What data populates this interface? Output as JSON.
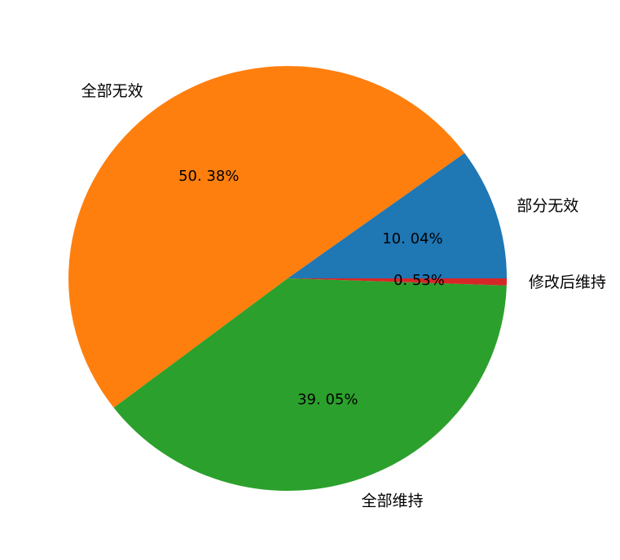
{
  "page": {
    "background_color": "#ffffff"
  },
  "chart_data": {
    "type": "pie",
    "start_angle_deg": 0,
    "direction": "counterclockwise",
    "legend_position": "none",
    "text_color": "#000000",
    "slices": [
      {
        "label": "部分无效",
        "value": 10.04,
        "pct_label": "10. 04%",
        "color": "#1f77b4"
      },
      {
        "label": "全部无效",
        "value": 50.38,
        "pct_label": "50. 38%",
        "color": "#ff7f0e"
      },
      {
        "label": "全部维持",
        "value": 39.05,
        "pct_label": "39. 05%",
        "color": "#2ca02c"
      },
      {
        "label": "修改后维持",
        "value": 0.53,
        "pct_label": "0. 53%",
        "color": "#d62728"
      }
    ]
  }
}
